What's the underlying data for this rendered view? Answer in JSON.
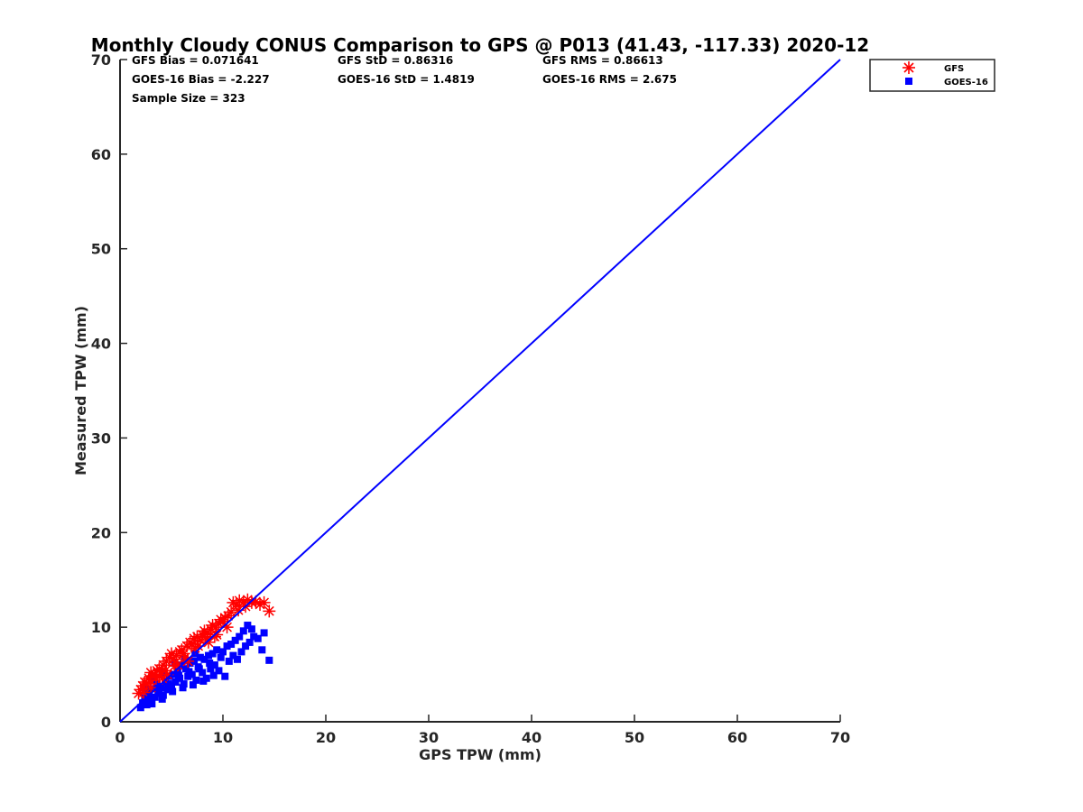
{
  "chart_data": {
    "type": "scatter",
    "title": "Monthly Cloudy CONUS Comparison to GPS @ P013 (41.43, -117.33) 2020-12",
    "xlabel": "GPS TPW (mm)",
    "ylabel": "Measured TPW (mm)",
    "xlim": [
      0,
      70
    ],
    "ylim": [
      0,
      70
    ],
    "xticks": [
      "0",
      "10",
      "20",
      "30",
      "40",
      "50",
      "60",
      "70"
    ],
    "yticks": [
      "0",
      "10",
      "20",
      "30",
      "40",
      "50",
      "60",
      "70"
    ],
    "grid": false,
    "legend_position": "top-right",
    "stats": [
      [
        "GFS Bias = 0.071641",
        "GFS StD = 0.86316",
        "GFS RMS = 0.86613"
      ],
      [
        "GOES-16 Bias = -2.227",
        "GOES-16 StD = 1.4819",
        "GOES-16 RMS = 2.675"
      ],
      [
        "Sample Size = 323"
      ]
    ],
    "reference_line": {
      "x": [
        0,
        70
      ],
      "y": [
        0,
        70
      ],
      "color": "#0000ff"
    },
    "series": [
      {
        "name": "GFS",
        "marker": "asterisk",
        "color": "#ff0000",
        "points": [
          [
            1.8,
            3.0
          ],
          [
            2.0,
            3.4
          ],
          [
            2.2,
            3.8
          ],
          [
            2.4,
            4.2
          ],
          [
            2.6,
            4.0
          ],
          [
            2.8,
            4.6
          ],
          [
            3.0,
            5.2
          ],
          [
            2.9,
            4.4
          ],
          [
            3.2,
            4.8
          ],
          [
            3.4,
            5.0
          ],
          [
            3.6,
            5.4
          ],
          [
            3.8,
            5.6
          ],
          [
            4.0,
            5.3
          ],
          [
            4.2,
            6.0
          ],
          [
            4.5,
            6.4
          ],
          [
            4.8,
            6.8
          ],
          [
            5.0,
            7.2
          ],
          [
            5.2,
            6.6
          ],
          [
            5.5,
            7.0
          ],
          [
            5.8,
            7.4
          ],
          [
            6.0,
            7.6
          ],
          [
            6.2,
            7.2
          ],
          [
            6.5,
            8.0
          ],
          [
            6.8,
            8.4
          ],
          [
            7.0,
            8.2
          ],
          [
            7.2,
            8.8
          ],
          [
            7.5,
            9.0
          ],
          [
            7.8,
            8.6
          ],
          [
            8.0,
            9.2
          ],
          [
            8.2,
            9.6
          ],
          [
            8.5,
            9.4
          ],
          [
            8.8,
            9.8
          ],
          [
            9.0,
            10.2
          ],
          [
            9.3,
            10.0
          ],
          [
            9.6,
            10.4
          ],
          [
            9.8,
            10.8
          ],
          [
            10.0,
            10.6
          ],
          [
            10.2,
            11.0
          ],
          [
            10.5,
            11.2
          ],
          [
            10.8,
            11.6
          ],
          [
            11.0,
            12.6
          ],
          [
            11.3,
            12.4
          ],
          [
            11.6,
            12.8
          ],
          [
            12.0,
            12.6
          ],
          [
            12.4,
            12.9
          ],
          [
            12.8,
            12.6
          ],
          [
            13.2,
            12.7
          ],
          [
            13.6,
            12.4
          ],
          [
            14.0,
            12.6
          ],
          [
            14.5,
            11.7
          ],
          [
            3.0,
            3.6
          ],
          [
            3.5,
            4.6
          ],
          [
            4.4,
            5.4
          ],
          [
            5.3,
            5.9
          ],
          [
            6.3,
            6.8
          ],
          [
            7.3,
            7.8
          ],
          [
            8.3,
            8.9
          ],
          [
            9.4,
            9.2
          ],
          [
            10.4,
            10.0
          ],
          [
            6.6,
            6.4
          ],
          [
            5.6,
            6.0
          ],
          [
            4.6,
            5.0
          ],
          [
            3.8,
            4.8
          ],
          [
            7.6,
            8.0
          ],
          [
            8.6,
            8.4
          ],
          [
            9.2,
            9.0
          ],
          [
            11.5,
            11.8
          ],
          [
            2.3,
            3.1
          ],
          [
            4.1,
            4.6
          ],
          [
            12.2,
            12.2
          ]
        ]
      },
      {
        "name": "GOES-16",
        "marker": "square",
        "color": "#0000ff",
        "points": [
          [
            2.0,
            1.5
          ],
          [
            2.2,
            2.0
          ],
          [
            2.4,
            2.5
          ],
          [
            2.6,
            1.8
          ],
          [
            2.8,
            3.0
          ],
          [
            3.0,
            2.2
          ],
          [
            3.2,
            3.5
          ],
          [
            3.4,
            2.6
          ],
          [
            3.6,
            4.0
          ],
          [
            3.8,
            3.0
          ],
          [
            4.0,
            3.6
          ],
          [
            4.2,
            2.8
          ],
          [
            4.4,
            4.2
          ],
          [
            4.6,
            3.4
          ],
          [
            4.8,
            4.8
          ],
          [
            5.0,
            3.8
          ],
          [
            5.2,
            5.0
          ],
          [
            5.4,
            4.2
          ],
          [
            5.6,
            5.4
          ],
          [
            5.8,
            4.6
          ],
          [
            6.0,
            6.0
          ],
          [
            6.2,
            4.0
          ],
          [
            6.4,
            5.6
          ],
          [
            6.6,
            4.8
          ],
          [
            6.8,
            6.2
          ],
          [
            7.0,
            5.0
          ],
          [
            7.2,
            6.4
          ],
          [
            7.4,
            4.4
          ],
          [
            7.6,
            5.8
          ],
          [
            7.8,
            6.8
          ],
          [
            8.0,
            5.2
          ],
          [
            8.2,
            6.6
          ],
          [
            8.4,
            4.6
          ],
          [
            8.6,
            7.0
          ],
          [
            8.8,
            5.6
          ],
          [
            9.0,
            7.2
          ],
          [
            9.2,
            6.0
          ],
          [
            9.4,
            7.6
          ],
          [
            9.6,
            5.4
          ],
          [
            9.8,
            6.8
          ],
          [
            10.0,
            7.4
          ],
          [
            10.2,
            4.8
          ],
          [
            10.4,
            8.0
          ],
          [
            10.6,
            6.4
          ],
          [
            10.8,
            8.2
          ],
          [
            11.0,
            7.0
          ],
          [
            11.2,
            8.6
          ],
          [
            11.4,
            6.6
          ],
          [
            11.6,
            9.0
          ],
          [
            11.8,
            7.4
          ],
          [
            12.0,
            9.6
          ],
          [
            12.2,
            8.0
          ],
          [
            12.4,
            10.2
          ],
          [
            12.6,
            8.4
          ],
          [
            12.8,
            9.8
          ],
          [
            13.0,
            9.0
          ],
          [
            13.4,
            8.8
          ],
          [
            13.8,
            7.6
          ],
          [
            14.0,
            9.4
          ],
          [
            14.5,
            6.5
          ],
          [
            2.5,
            3.4
          ],
          [
            3.3,
            4.4
          ],
          [
            4.3,
            5.2
          ],
          [
            5.3,
            6.2
          ],
          [
            6.3,
            6.6
          ],
          [
            7.3,
            7.2
          ],
          [
            3.1,
            1.9
          ],
          [
            4.1,
            2.4
          ],
          [
            5.1,
            3.2
          ],
          [
            6.1,
            3.6
          ],
          [
            7.1,
            3.9
          ],
          [
            8.1,
            4.3
          ],
          [
            9.1,
            4.9
          ],
          [
            2.9,
            2.6
          ],
          [
            3.7,
            3.2
          ],
          [
            4.7,
            4.0
          ],
          [
            5.7,
            4.9
          ],
          [
            6.7,
            5.3
          ],
          [
            7.7,
            5.6
          ],
          [
            8.7,
            6.2
          ]
        ]
      }
    ]
  }
}
